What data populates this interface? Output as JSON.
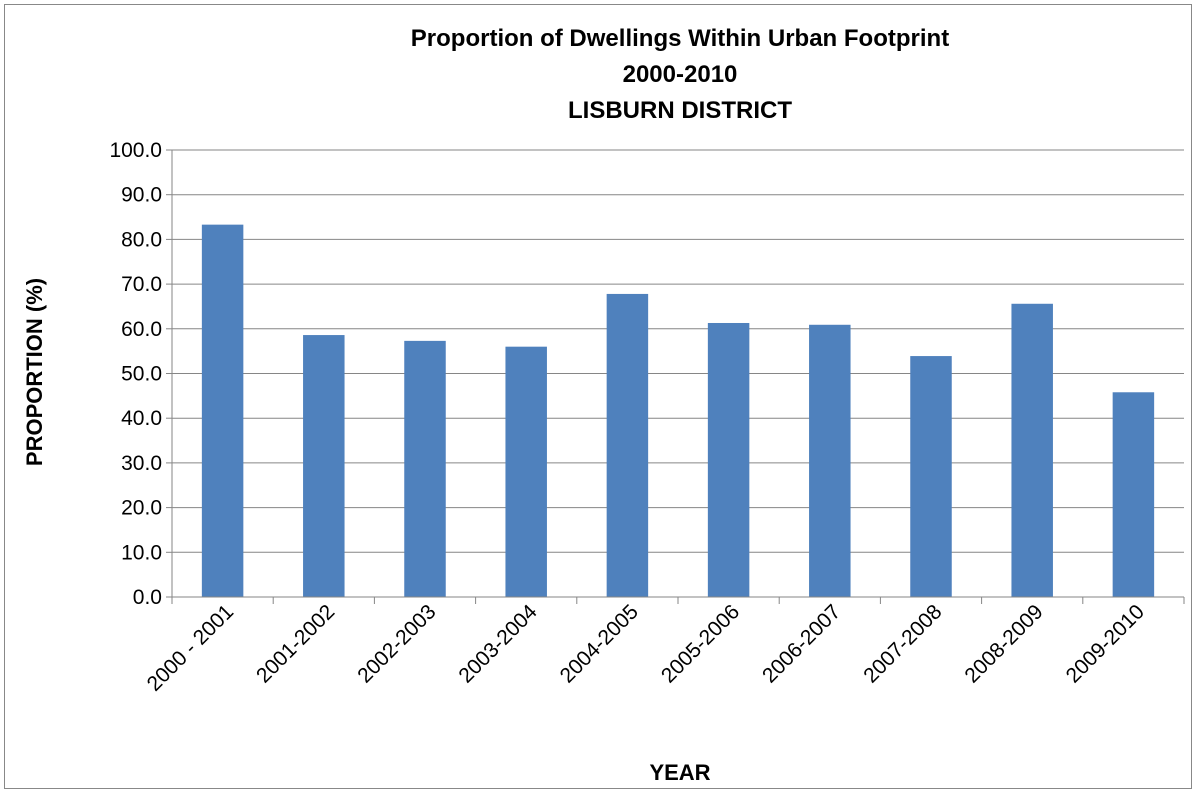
{
  "chart_data": {
    "type": "bar",
    "title": [
      "Proportion of Dwellings Within Urban Footprint",
      "2000-2010",
      "LISBURN DISTRICT"
    ],
    "xlabel": "YEAR",
    "ylabel": "PROPORTION (%)",
    "categories": [
      "2000 - 2001",
      "2001-2002",
      "2002-2003",
      "2003-2004",
      "2004-2005",
      "2005-2006",
      "2006-2007",
      "2007-2008",
      "2008-2009",
      "2009-2010"
    ],
    "values": [
      83.3,
      58.6,
      57.3,
      56.0,
      67.8,
      61.3,
      60.9,
      53.9,
      65.6,
      45.8
    ],
    "ylim": [
      0,
      100
    ],
    "yticks": [
      "0.0",
      "10.0",
      "20.0",
      "30.0",
      "40.0",
      "50.0",
      "60.0",
      "70.0",
      "80.0",
      "90.0",
      "100.0"
    ],
    "grid": true,
    "legend": "none",
    "bar_color": "#4F81BD",
    "grid_color": "#868686"
  }
}
